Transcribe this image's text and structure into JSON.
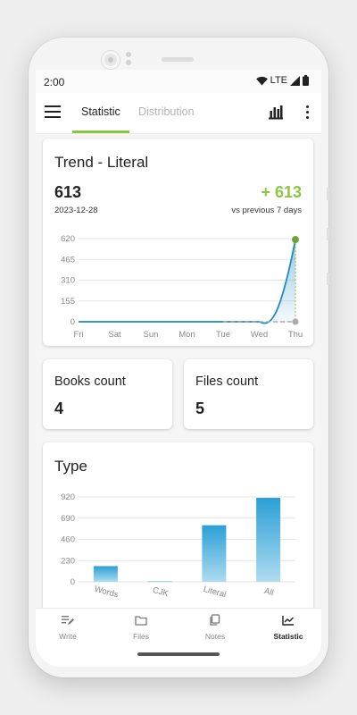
{
  "status_bar": {
    "time": "2:00",
    "network": "LTE",
    "icons": [
      "wifi-icon",
      "signal-icon",
      "battery-icon"
    ]
  },
  "appbar": {
    "tabs": [
      {
        "label": "Statistic",
        "active": true
      },
      {
        "label": "Distribution",
        "active": false
      }
    ],
    "icons": [
      "menu-icon",
      "bar-chart-icon",
      "more-vert-icon"
    ]
  },
  "trend_card": {
    "title": "Trend - Literal",
    "value": "613",
    "date": "2023-12-28",
    "delta": "+ 613",
    "comparison": "vs previous 7 days"
  },
  "books_card": {
    "title": "Books count",
    "value": "4"
  },
  "files_card": {
    "title": "Files count",
    "value": "5"
  },
  "type_card": {
    "title": "Type"
  },
  "bottom_nav": [
    {
      "label": "Write",
      "icon": "write-icon",
      "active": false
    },
    {
      "label": "Files",
      "icon": "folder-icon",
      "active": false
    },
    {
      "label": "Notes",
      "icon": "notes-icon",
      "active": false
    },
    {
      "label": "Statistic",
      "icon": "statistic-icon",
      "active": true
    }
  ],
  "colors": {
    "accent": "#8cc63f",
    "line": "#1e8bc3",
    "bar": "#5ab4dc",
    "text": "#222222"
  },
  "chart_data": [
    {
      "type": "area",
      "categories": [
        "Fri",
        "Sat",
        "Sun",
        "Mon",
        "Tue",
        "Wed",
        "Thu"
      ],
      "yticks": [
        "620",
        "465",
        "310",
        "155",
        "0"
      ],
      "ylim": [
        0,
        620
      ],
      "series": [
        {
          "values": [
            0,
            0,
            0,
            0,
            0,
            0,
            613
          ]
        },
        {
          "values": [
            null,
            null,
            null,
            null,
            0,
            0,
            0
          ],
          "style": "dashed"
        }
      ],
      "grid": true
    },
    {
      "type": "bar",
      "categories": [
        "Words",
        "CJK",
        "Literal",
        "All"
      ],
      "values": [
        170,
        5,
        613,
        910
      ],
      "yticks": [
        "920",
        "690",
        "460",
        "230",
        "0"
      ],
      "ylim": [
        0,
        920
      ],
      "grid": true
    }
  ]
}
